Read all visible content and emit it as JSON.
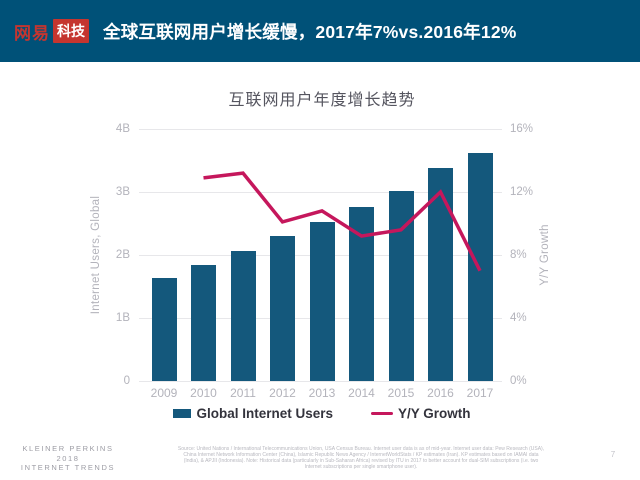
{
  "header": {
    "logo_netease": "网易",
    "logo_tech": "科技",
    "title": "全球互联网用户增长缓慢，2017年7%vs.2016年12%"
  },
  "chart_data": {
    "type": "bar+line combo",
    "title": "互联网用户年度增长趋势",
    "categories": [
      "2009",
      "2010",
      "2011",
      "2012",
      "2013",
      "2014",
      "2015",
      "2016",
      "2017"
    ],
    "series": [
      {
        "name": "Global Internet Users",
        "type": "bar",
        "axis": "left",
        "unit": "billions",
        "color": "#14587c",
        "values": [
          1.63,
          1.84,
          2.07,
          2.3,
          2.52,
          2.77,
          3.02,
          3.38,
          3.62
        ]
      },
      {
        "name": "Y/Y Growth",
        "type": "line",
        "axis": "right",
        "unit": "percent",
        "color": "#c5175c",
        "values": [
          null,
          12.9,
          13.2,
          10.1,
          10.8,
          9.2,
          9.6,
          12.0,
          7.0
        ]
      }
    ],
    "left_axis": {
      "label": "Internet Users, Global",
      "ticks_top_to_bottom": [
        "4B",
        "3B",
        "2B",
        "1B",
        "0"
      ],
      "range": [
        0,
        4
      ]
    },
    "right_axis": {
      "label": "Y/Y Growth",
      "ticks_top_to_bottom": [
        "16%",
        "12%",
        "8%",
        "4%",
        "0%"
      ],
      "range": [
        0,
        16
      ]
    },
    "grid": "horizontal",
    "legend_position": "bottom"
  },
  "footer": {
    "brand_line1": "KLEINER PERKINS",
    "brand_line2": "2018",
    "brand_line3": "INTERNET TRENDS",
    "source": "Source: United Nations / International Telecommunications Union, USA Census Bureau. Internet user data is as of mid-year. Internet user data: Pew Research (USA), China Internet Network Information Center (China), Islamic Republic News Agency / InternetWorldStats / KP estimates (Iran). KP estimates based on IAMAI data (India), & APJII (Indonesia). Note: Historical data (particularly in Sub-Saharan Africa) revised by ITU in 2017 to better account for dual-SIM subscriptions (i.e. two Internet subscriptions per single smartphone user).",
    "page_number": "7"
  },
  "colors": {
    "header_bg": "#005178",
    "logo_red": "#c5352f",
    "bar_blue": "#14587c",
    "line_red": "#c5175c",
    "grid_gray": "#e7e7ea",
    "axis_gray": "#b3b3bb",
    "title_gray": "#55555f",
    "legend_text": "#33333c"
  }
}
